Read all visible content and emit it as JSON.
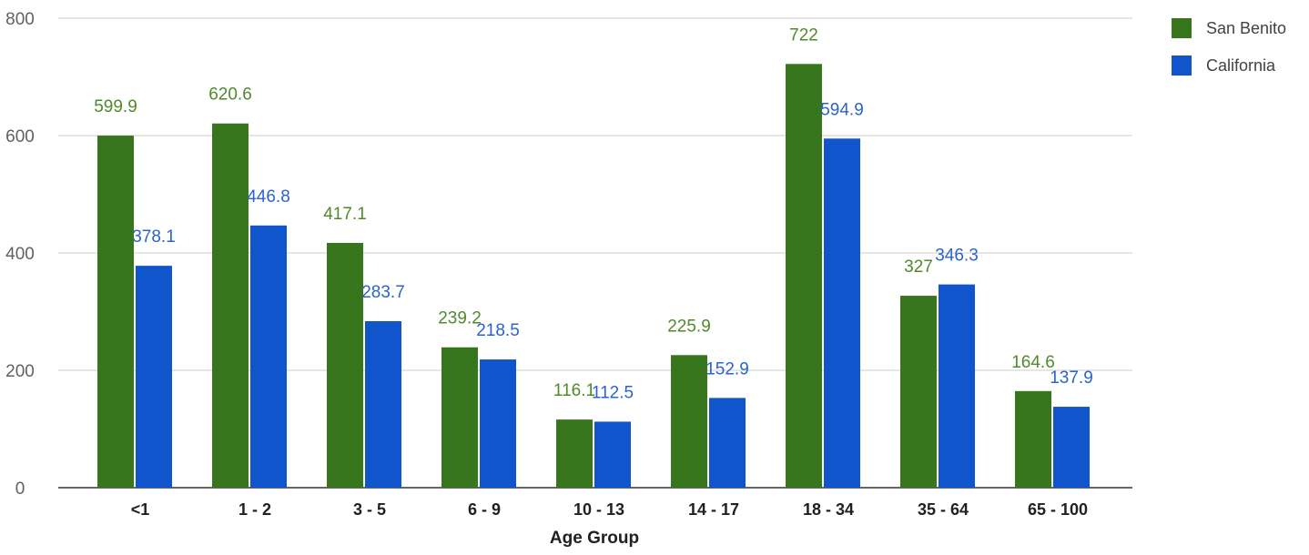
{
  "chart_data": {
    "type": "bar",
    "title": "",
    "xlabel": "Age Group",
    "ylabel": "",
    "ylim": [
      0,
      800
    ],
    "yticks": [
      "0",
      "200",
      "400",
      "600",
      "800"
    ],
    "grid": true,
    "legend_position": "top-right",
    "categories": [
      "<1",
      "1 - 2",
      "3 - 5",
      "6 - 9",
      "10 - 13",
      "14 - 17",
      "18 - 34",
      "35 - 64",
      "65 - 100"
    ],
    "series": [
      {
        "name": "San Benito",
        "color": "#38761d",
        "label_color": "#4f8a2b",
        "values": [
          599.9,
          620.6,
          417.1,
          239.2,
          116.1,
          225.9,
          722,
          327,
          164.6
        ],
        "value_labels": [
          "599.9",
          "620.6",
          "417.1",
          "239.2",
          "116.1",
          "225.9",
          "722",
          "327",
          "164.6"
        ]
      },
      {
        "name": "California",
        "color": "#1155cc",
        "label_color": "#2b63cf",
        "values": [
          378.1,
          446.8,
          283.7,
          218.5,
          112.5,
          152.9,
          594.9,
          346.3,
          137.9
        ],
        "value_labels": [
          "378.1",
          "446.8",
          "283.7",
          "218.5",
          "112.5",
          "152.9",
          "594.9",
          "346.3",
          "137.9"
        ]
      }
    ]
  }
}
